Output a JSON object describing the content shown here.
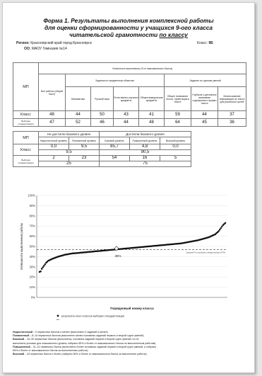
{
  "title": {
    "line1": "Форма 1. Результаты выполнения комплексной работы",
    "line2": "для оценки сформированности у учащихся 9-ого класса",
    "line3a": "читательской грамотности ",
    "line3b": "по классу"
  },
  "meta": {
    "region_label": "Регион:",
    "region_value": "Красноярский край город Красноярск",
    "class_label": "Класс:",
    "class_value": "9Б",
    "school_label": "ОО:",
    "school_value": "МАОУ Гимназия №14"
  },
  "table1": {
    "mp": "МП",
    "success_header": "Успешность выполнения (% от максимального балла)",
    "overall": "Все работы (общий балл)",
    "subject_group": "Задания по предметным областям",
    "skill_group": "Задания по группам умений",
    "cols": [
      "Математика",
      "Русский язык",
      "Естественно-научные предметы",
      "Обществоведческие предметы",
      "Общее понимание текста, ориентация в тексте",
      "Глубокое и детальное понимание содержания и формы текста",
      "Использование информации из текста для различных целей"
    ],
    "rows": [
      {
        "label": "Класс",
        "values": [
          "48",
          "44",
          "50",
          "43",
          "41",
          "59",
          "44",
          "37"
        ]
      },
      {
        "label": "Выборка стандартизации",
        "values": [
          "47",
          "52",
          "46",
          "44",
          "48",
          "64",
          "45",
          "36"
        ]
      }
    ]
  },
  "table2": {
    "mp": "МП",
    "not_reached": "Не достигли базового уровня",
    "reached": "Достигли базового уровня",
    "levels": [
      "Недостаточный уровень",
      "Пониженный уровень",
      "Базовый уровень",
      "Повышенный уровень",
      "Высокий уровень"
    ],
    "class_label": "Класс",
    "class_values": [
      "0,0",
      "9,5",
      "85,7",
      "4,8",
      "0,0"
    ],
    "class_sums": [
      "9,5",
      "90,5"
    ],
    "sample_label": "Выборка стандартизации",
    "sample_values": [
      "2",
      "23",
      "54",
      "16",
      "5"
    ],
    "sample_sums": [
      "25",
      "75"
    ]
  },
  "chart_data": {
    "type": "scatter",
    "title": "",
    "xlabel": "Порядковый номер класса",
    "ylabel": "Успешность выполнения работы",
    "y_ticks": [
      "0%",
      "10%",
      "20%",
      "30%",
      "40%",
      "50%",
      "60%",
      "70%",
      "80%",
      "90%",
      "100%"
    ],
    "ylim": [
      0,
      100
    ],
    "n_classes": 170,
    "series": [
      {
        "name": "результаты всех классов выборки стандартизации",
        "values": [
          25.0,
          25.5,
          28.0,
          29.5,
          31.0,
          32.5,
          34.0,
          35.0,
          36.0,
          36.5,
          37.0,
          37.5,
          38.0,
          38.4,
          38.8,
          39.2,
          39.6,
          40.0,
          40.3,
          40.6,
          40.9,
          41.2,
          41.5,
          41.8,
          42.0,
          42.2,
          42.4,
          42.6,
          42.8,
          43.0,
          43.1,
          43.2,
          43.3,
          43.4,
          43.5,
          43.6,
          43.7,
          43.8,
          43.9,
          44.0,
          44.1,
          44.2,
          44.3,
          44.4,
          44.5,
          44.6,
          44.7,
          44.8,
          44.9,
          45.0,
          45.1,
          45.2,
          45.3,
          45.4,
          45.5,
          45.6,
          45.7,
          45.8,
          45.9,
          46.0,
          46.1,
          46.2,
          46.3,
          46.4,
          46.5,
          46.6,
          46.7,
          46.8,
          46.9,
          47.0,
          47.1,
          47.2,
          47.3,
          47.4,
          47.5,
          47.6,
          47.7,
          47.8,
          47.9,
          48.0,
          48.1,
          48.2,
          48.3,
          48.4,
          48.5,
          48.6,
          48.7,
          48.8,
          48.9,
          49.0,
          49.1,
          49.2,
          49.3,
          49.4,
          49.5,
          49.6,
          49.7,
          49.8,
          49.9,
          50.0,
          50.1,
          50.2,
          50.3,
          50.4,
          50.5,
          50.6,
          50.7,
          50.8,
          50.9,
          51.0,
          51.1,
          51.2,
          51.3,
          51.4,
          51.5,
          51.6,
          51.7,
          51.8,
          51.9,
          52.0,
          52.1,
          52.2,
          52.3,
          52.4,
          52.5,
          52.6,
          52.7,
          52.8,
          52.9,
          53.0,
          53.2,
          53.4,
          53.6,
          53.8,
          54.0,
          54.2,
          54.4,
          54.6,
          54.8,
          55.0,
          55.2,
          55.4,
          55.6,
          55.8,
          56.0,
          56.3,
          56.6,
          56.9,
          57.2,
          57.5,
          57.8,
          58.1,
          58.4,
          58.7,
          59.0,
          59.5,
          60.0,
          60.5,
          61.0,
          61.5,
          62.0,
          63.0,
          64.0,
          65.0,
          66.5,
          68.0,
          69.5,
          71.0,
          72.0,
          73.0
        ]
      },
      {
        "name": "результат данного класса",
        "points": [
          {
            "x": 70,
            "y": 48
          }
        ]
      }
    ],
    "reference_line": {
      "y": 47,
      "label": "Средний % по выборке стандартизации (47%)"
    },
    "point_label": "48%",
    "legend_position": "bottom"
  },
  "footer": [
    {
      "term": "Недостаточный",
      "text": " – 0 первичных баллов и менее (выполнено 0 заданий и менее)"
    },
    {
      "term": "Пониженный",
      "text": " – 8–14 первичных баллов (выполнено менее половины заданий первого и второй групп умений)"
    },
    {
      "term": "Базовый",
      "text": " – 15–30 первичных баллов (выполнены, половина заданий первой и второй групп умений, но не"
    },
    {
      "term": "",
      "text": "выполнено условие для повышенного уровня; набрано 65% и более от максимального балла по выполненным работам)"
    },
    {
      "term": "Повышенный",
      "text": " – 31–42 первичных балла (выполнено более половины заданий первой и второй групп умений, и набрано"
    },
    {
      "term": "",
      "text": "65% и более от максимального балла за выполненные работы)"
    },
    {
      "term": "Высокий",
      "text": " – 43 первичных балла и более (набрано 80% и более от максимального балла за выполнение работы)"
    }
  ],
  "colors": {
    "marker": "#111111",
    "highlight_marker": "#ffffff",
    "reference_line": "#333333",
    "grid": "#dddddd"
  }
}
